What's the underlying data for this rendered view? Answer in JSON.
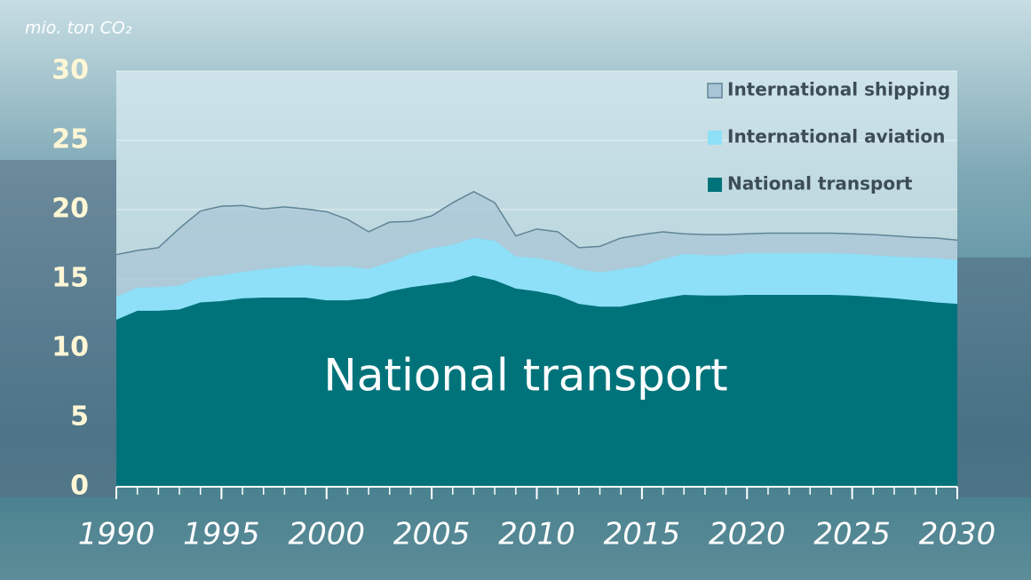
{
  "chart_data": {
    "type": "stacked_area",
    "y_label": "mio. ton CO₂",
    "annotation": "National transport",
    "x": [
      1990,
      1991,
      1992,
      1993,
      1994,
      1995,
      1996,
      1997,
      1998,
      1999,
      2000,
      2001,
      2002,
      2003,
      2004,
      2005,
      2006,
      2007,
      2008,
      2009,
      2010,
      2011,
      2012,
      2013,
      2014,
      2015,
      2016,
      2017,
      2018,
      2019,
      2020,
      2021,
      2022,
      2023,
      2024,
      2025,
      2026,
      2027,
      2028,
      2029,
      2030
    ],
    "series": [
      {
        "name": "National transport",
        "color": "#00737a",
        "values": [
          12.05,
          12.7,
          12.7,
          12.8,
          13.3,
          13.4,
          13.6,
          13.65,
          13.65,
          13.65,
          13.45,
          13.45,
          13.6,
          14.1,
          14.4,
          14.6,
          14.8,
          15.25,
          14.9,
          14.3,
          14.1,
          13.8,
          13.2,
          13.0,
          13.0,
          13.3,
          13.6,
          13.85,
          13.8,
          13.8,
          13.85,
          13.85,
          13.85,
          13.85,
          13.85,
          13.8,
          13.7,
          13.6,
          13.45,
          13.3,
          13.2
        ]
      },
      {
        "name": "International aviation",
        "color": "#8ee0f8",
        "values": [
          1.65,
          1.65,
          1.7,
          1.7,
          1.8,
          1.85,
          1.9,
          2.05,
          2.2,
          2.35,
          2.4,
          2.45,
          2.1,
          2.1,
          2.4,
          2.6,
          2.65,
          2.7,
          2.85,
          2.3,
          2.4,
          2.4,
          2.5,
          2.45,
          2.7,
          2.6,
          2.8,
          2.95,
          2.9,
          2.9,
          3.0,
          3.0,
          3.0,
          3.0,
          3.0,
          3.0,
          3.0,
          3.0,
          3.1,
          3.2,
          3.15
        ]
      },
      {
        "name": "International shipping",
        "color": "#a9c6d6",
        "values": [
          3.05,
          2.7,
          2.85,
          4.15,
          4.8,
          5.0,
          4.8,
          4.35,
          4.35,
          4.05,
          4.0,
          3.4,
          2.7,
          2.9,
          2.35,
          2.35,
          3.05,
          3.35,
          2.75,
          1.5,
          2.1,
          2.2,
          1.55,
          1.9,
          2.25,
          2.3,
          2.0,
          1.45,
          1.5,
          1.5,
          1.4,
          1.45,
          1.45,
          1.45,
          1.45,
          1.45,
          1.5,
          1.5,
          1.45,
          1.45,
          1.45
        ]
      }
    ],
    "xlim": [
      1990,
      2030
    ],
    "xticks": [
      1990,
      1995,
      2000,
      2005,
      2010,
      2015,
      2020,
      2025,
      2030
    ],
    "ylim": [
      0,
      30
    ],
    "yticks": [
      0,
      5,
      10,
      15,
      20,
      25,
      30
    ],
    "grid": true,
    "legend": "upper right"
  }
}
